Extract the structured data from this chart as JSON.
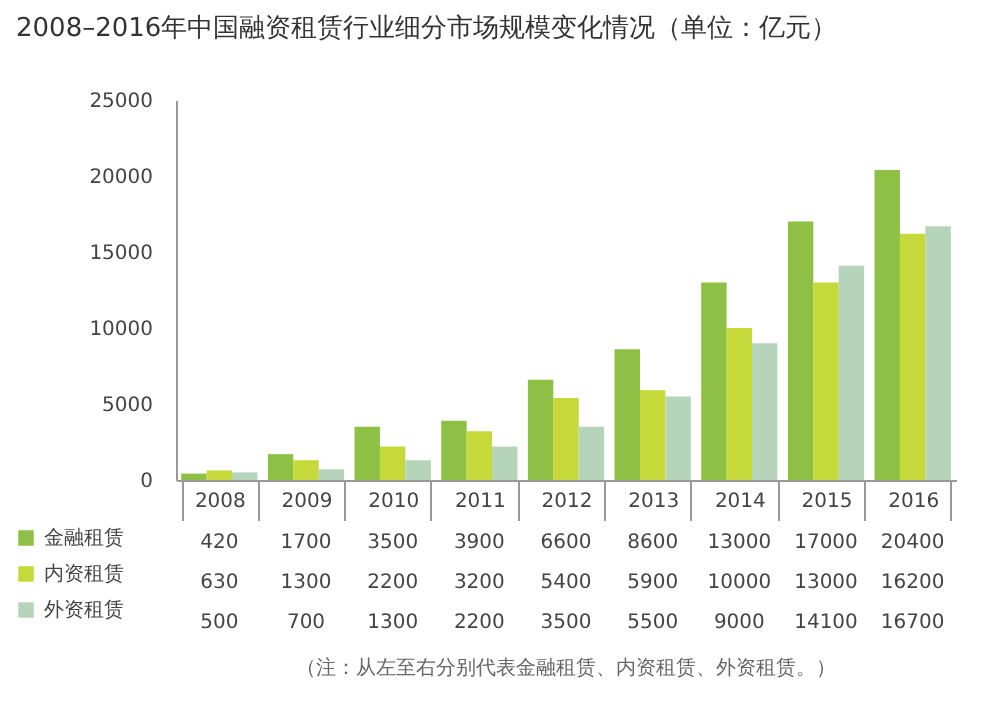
{
  "chart_data": {
    "type": "bar",
    "title": "2008–2016年中国融资租赁行业细分市场规模变化情况（单位：亿元）",
    "categories": [
      "2008",
      "2009",
      "2010",
      "2011",
      "2012",
      "2013",
      "2014",
      "2015",
      "2016"
    ],
    "series": [
      {
        "name": "金融租赁",
        "color": "#8dc044",
        "values": [
          420,
          1700,
          3500,
          3900,
          6600,
          8600,
          13000,
          17000,
          20400
        ]
      },
      {
        "name": "内资租赁",
        "color": "#c6d93a",
        "values": [
          630,
          1300,
          2200,
          3200,
          5400,
          5900,
          10000,
          13000,
          16200
        ]
      },
      {
        "name": "外资租赁",
        "color": "#b6d4b9",
        "values": [
          500,
          700,
          1300,
          2200,
          3500,
          5500,
          9000,
          14100,
          16700
        ]
      }
    ],
    "ylim": [
      0,
      25000
    ],
    "yticks": [
      0,
      5000,
      10000,
      15000,
      20000,
      25000
    ],
    "data_labels": true,
    "legend": "bottom",
    "annotations": [
      "（注：从左至右分别代表金融租赁、内资租赁、外资租赁。）"
    ]
  }
}
